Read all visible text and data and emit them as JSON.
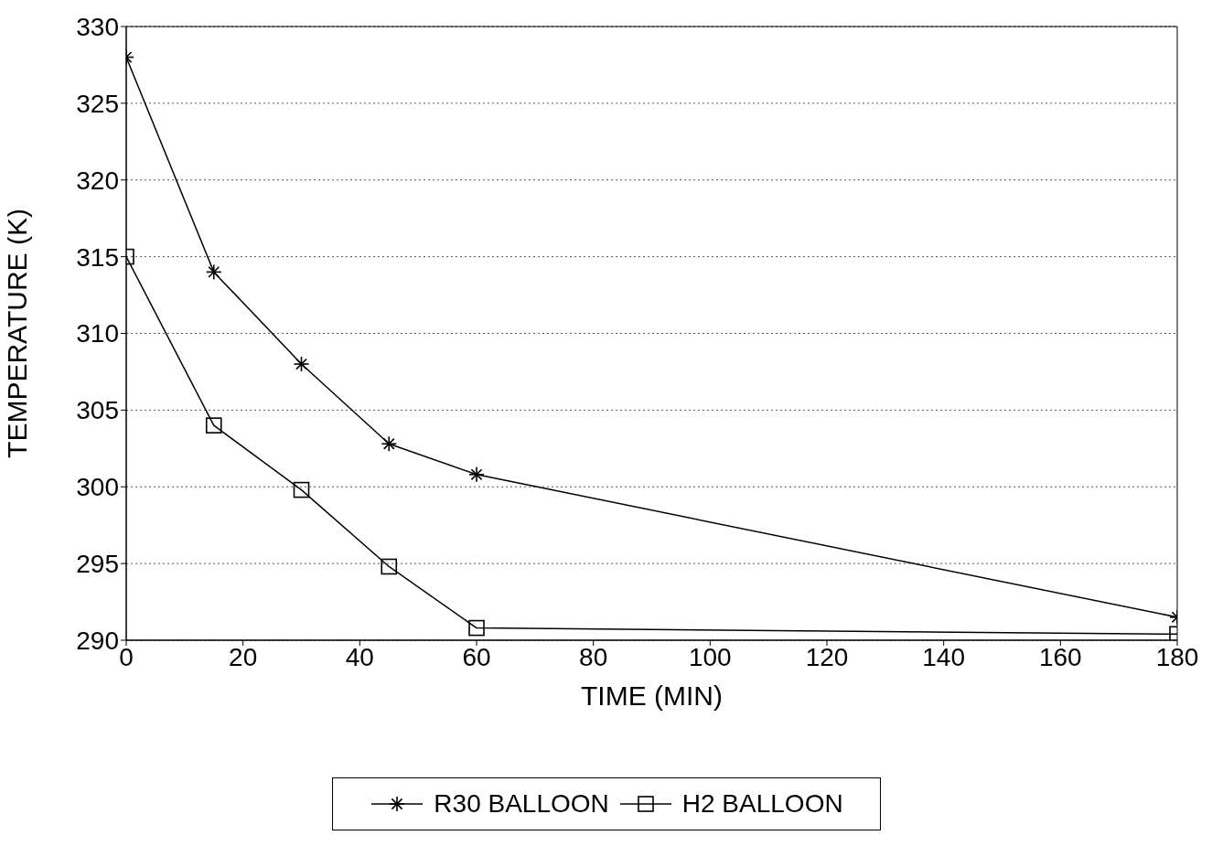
{
  "chart_data": {
    "type": "line",
    "xlabel": "TIME (MIN)",
    "ylabel": "TEMPERATURE (K)",
    "xlim": [
      0,
      180
    ],
    "xticks": [
      0,
      20,
      40,
      60,
      80,
      100,
      120,
      140,
      160,
      180
    ],
    "ylim": [
      290,
      330
    ],
    "yticks": [
      290,
      295,
      300,
      305,
      310,
      315,
      320,
      325,
      330
    ],
    "grid": "y",
    "legend": "bottom",
    "line_style": "solid",
    "series": [
      {
        "name": "R30 BALLOON",
        "color": "#000000",
        "marker": "cross",
        "x": [
          0,
          15,
          30,
          45,
          60,
          180
        ],
        "values": [
          328,
          314,
          308,
          302.8,
          300.8,
          291.5
        ]
      },
      {
        "name": "H2 BALLOON",
        "color": "#000000",
        "marker": "square",
        "x": [
          0,
          15,
          30,
          45,
          60,
          180
        ],
        "values": [
          315,
          304,
          299.8,
          294.8,
          290.8,
          290.4
        ]
      }
    ]
  }
}
